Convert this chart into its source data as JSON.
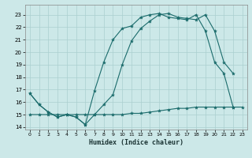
{
  "xlabel": "Humidex (Indice chaleur)",
  "bg_color": "#cce8e8",
  "grid_color": "#aacfcf",
  "line_color": "#1a6b6b",
  "xlim": [
    -0.5,
    23.5
  ],
  "ylim": [
    13.8,
    23.8
  ],
  "yticks": [
    14,
    15,
    16,
    17,
    18,
    19,
    20,
    21,
    22,
    23
  ],
  "xticks": [
    0,
    1,
    2,
    3,
    4,
    5,
    6,
    7,
    8,
    9,
    10,
    11,
    12,
    13,
    14,
    15,
    16,
    17,
    18,
    19,
    20,
    21,
    22,
    23
  ],
  "line1_x": [
    0,
    1,
    2,
    3,
    4,
    5,
    6,
    7,
    8,
    9,
    10,
    11,
    12,
    13,
    14,
    15,
    16,
    17,
    18,
    19,
    20,
    21,
    22
  ],
  "line1_y": [
    16.7,
    15.8,
    15.2,
    14.8,
    15.0,
    14.8,
    14.2,
    15.0,
    15.8,
    16.6,
    19.0,
    20.9,
    21.9,
    22.5,
    23.0,
    23.1,
    22.8,
    22.7,
    22.6,
    23.0,
    21.7,
    19.2,
    18.3
  ],
  "line2_x": [
    0,
    1,
    2,
    3,
    4,
    5,
    6,
    7,
    8,
    9,
    10,
    11,
    12,
    13,
    14,
    15,
    16,
    17,
    18,
    19,
    20,
    21,
    22
  ],
  "line2_y": [
    16.7,
    15.8,
    15.2,
    14.8,
    15.0,
    14.8,
    14.2,
    16.9,
    19.2,
    21.0,
    21.9,
    22.1,
    22.8,
    23.0,
    23.1,
    22.8,
    22.7,
    22.6,
    23.0,
    21.7,
    19.2,
    18.3,
    15.6
  ],
  "line3_x": [
    0,
    1,
    2,
    3,
    4,
    5,
    6,
    7,
    8,
    9,
    10,
    11,
    12,
    13,
    14,
    15,
    16,
    17,
    18,
    19,
    20,
    21,
    22,
    23
  ],
  "line3_y": [
    15.0,
    15.0,
    15.0,
    15.0,
    15.0,
    15.0,
    15.0,
    15.0,
    15.0,
    15.0,
    15.0,
    15.1,
    15.1,
    15.2,
    15.3,
    15.4,
    15.5,
    15.5,
    15.6,
    15.6,
    15.6,
    15.6,
    15.6,
    15.6
  ]
}
